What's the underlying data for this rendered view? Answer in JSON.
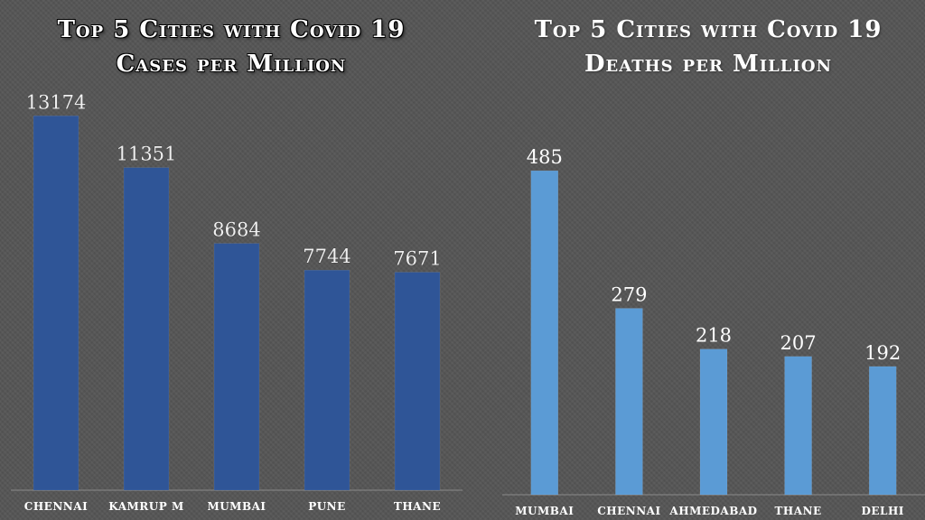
{
  "colors": {
    "background": "#555555",
    "left_bar": "#2f5597",
    "right_bar": "#5b9bd5",
    "axis": "#8a8a8a"
  },
  "chart_data": [
    {
      "type": "bar",
      "title_lines": [
        "Top 5 Cities with Covid 19",
        "Cases per Million"
      ],
      "categories": [
        "CHENNAI",
        "KAMRUP M",
        "MUMBAI",
        "PUNE",
        "THANE"
      ],
      "values": [
        13174,
        11351,
        8684,
        7744,
        7671
      ],
      "data_labels": [
        "13174",
        "11351",
        "8684",
        "7744",
        "7671"
      ],
      "xlabel": "",
      "ylabel": "",
      "ylim": [
        0,
        13500
      ],
      "grid": false,
      "legend": "none"
    },
    {
      "type": "bar",
      "title_lines": [
        "Top 5 Cities with Covid 19",
        "Deaths per Million"
      ],
      "categories": [
        "MUMBAI",
        "CHENNAI",
        "AHMEDABAD",
        "THANE",
        "DELHI"
      ],
      "values": [
        485,
        279,
        218,
        207,
        192
      ],
      "data_labels": [
        "485",
        "279",
        "218",
        "207",
        "192"
      ],
      "xlabel": "",
      "ylabel": "",
      "ylim": [
        0,
        500
      ],
      "grid": false,
      "legend": "none"
    }
  ]
}
